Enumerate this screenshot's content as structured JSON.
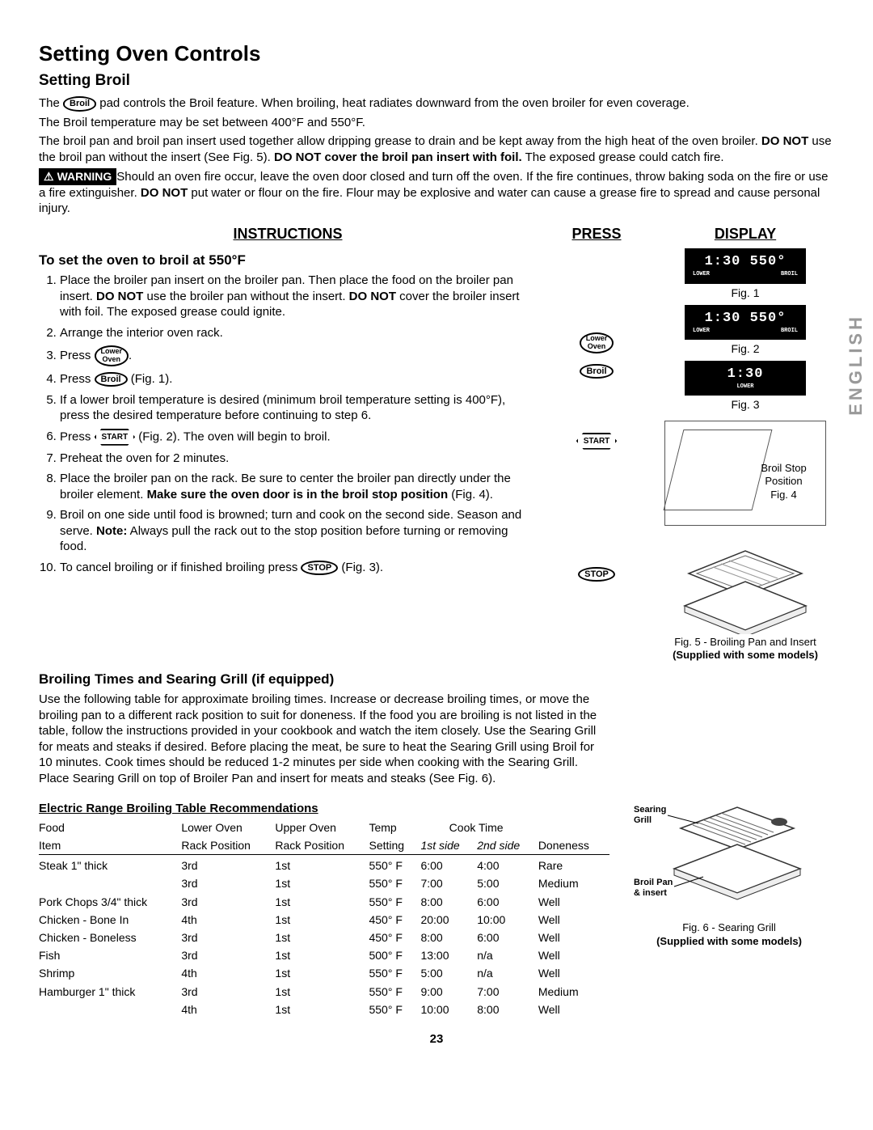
{
  "page_title": "Setting Oven Controls",
  "section_title": "Setting Broil",
  "intro": {
    "p1_pre": "The ",
    "p1_pad": "Broil",
    "p1_post": " pad controls the Broil feature. When broiling, heat radiates downward from the oven broiler for even coverage.",
    "p2": "The Broil temperature may be set between 400°F and 550°F.",
    "p3_a": "The broil pan and broil pan insert used together allow dripping grease to drain and be kept away from the high heat of the oven broiler. ",
    "p3_b": "DO NOT",
    "p3_c": " use the broil pan without the insert (See Fig. 5). ",
    "p3_d": "DO NOT cover the broil pan insert with foil.",
    "p3_e": " The exposed grease could catch fire."
  },
  "warning": {
    "label": "WARNING",
    "text_a": "Should an oven fire occur, leave the oven door closed and turn off the oven. If the fire continues, throw baking soda on the fire or use a fire extinguisher. ",
    "text_b": "DO NOT",
    "text_c": " put water or flour on the fire. Flour may be explosive and water can cause a grease fire to spread and cause personal injury."
  },
  "cols": {
    "instructions_head": "INSTRUCTIONS",
    "press_head": "PRESS",
    "display_head": "DISPLAY"
  },
  "instr_title": "To set the oven to broil at 550°F",
  "steps": {
    "s1_a": "Place the broiler pan insert on the broiler pan. Then place the food on the broiler pan insert. ",
    "s1_b": "DO NOT",
    "s1_c": " use the broiler pan without the insert. ",
    "s1_d": "DO NOT",
    "s1_e": " cover the broiler insert with foil. The exposed grease could ignite.",
    "s2": "Arrange the interior oven rack.",
    "s3_a": "Press ",
    "s3_pad": "Lower\nOven",
    "s3_b": ".",
    "s4_a": "Press ",
    "s4_pad": "Broil",
    "s4_b": " (Fig. 1).",
    "s5": "If a lower broil temperature is desired (minimum broil temperature setting is 400°F), press the desired temperature before continuing to step 6.",
    "s6_a": "Press ",
    "s6_pad": "START",
    "s6_b": " (Fig. 2). The oven will begin to broil.",
    "s7": "Preheat the oven for 2 minutes.",
    "s8_a": "Place the broiler pan on the rack. Be sure to center the broiler pan directly under the broiler element. ",
    "s8_b": "Make sure the oven door is in the broil stop position",
    "s8_c": " (Fig. 4).",
    "s9_a": "Broil on one side until food is browned; turn and cook on the second side. Season and serve. ",
    "s9_b": "Note:",
    "s9_c": " Always pull the rack out to the stop position before turning or removing food.",
    "s10_a": "To cancel broiling or if finished broiling press ",
    "s10_pad": "STOP",
    "s10_b": " (Fig. 3)."
  },
  "press_pads": {
    "lower_oven": "Lower\nOven",
    "broil": "Broil",
    "start": "START",
    "stop": "STOP"
  },
  "displays": {
    "d1_main": "1:30 550°",
    "d1_sub_l": "LOWER",
    "d1_sub_r": "BROIL",
    "fig1": "Fig. 1",
    "d2_main": "1:30 550°",
    "d2_sub_l": "LOWER",
    "d2_sub_r": "BROIL",
    "fig2": "Fig. 2",
    "d3_main": "1:30",
    "d3_sub": "LOWER",
    "fig3": "Fig. 3"
  },
  "english_tab": "ENGLISH",
  "fig4_label": "Broil Stop Position",
  "fig4_cap": "Fig. 4",
  "broil_times": {
    "heading": "Broiling Times and Searing Grill (if equipped)",
    "para": "Use the following table for approximate broiling times. Increase or decrease broiling times, or move the broiling pan to a different rack position to suit for doneness. If the food you are broiling is not listed in the table, follow the instructions provided in your cookbook and watch the item closely. Use the Searing Grill for meats and steaks if desired. Before placing the meat, be sure to heat the Searing Grill using Broil for 10 minutes. Cook times should be reduced 1-2 minutes per side when cooking with the Searing Grill. Place Searing Grill on top of Broiler Pan and insert for meats and steaks (See Fig. 6)."
  },
  "fig5_cap": "Fig. 5 - Broiling Pan and Insert",
  "fig5_sub": "(Supplied with some models)",
  "table": {
    "title": "Electric Range Broiling Table Recommendations",
    "head1": {
      "food": "Food",
      "lower": "Lower Oven",
      "upper": "Upper Oven",
      "temp": "Temp",
      "cook": "Cook Time",
      "done": ""
    },
    "head2": {
      "food": "Item",
      "lower": "Rack Position",
      "upper": "Rack Position",
      "temp": "Setting",
      "side1": "1st side",
      "side2": "2nd side",
      "done": "Doneness"
    },
    "rows": [
      {
        "food": "Steak 1\" thick",
        "lower": "3rd",
        "upper": "1st",
        "temp": "550° F",
        "s1": "6:00",
        "s2": "4:00",
        "done": "Rare"
      },
      {
        "food": "",
        "lower": "3rd",
        "upper": "1st",
        "temp": "550° F",
        "s1": "7:00",
        "s2": "5:00",
        "done": "Medium"
      },
      {
        "food": "Pork Chops 3/4\" thick",
        "lower": "3rd",
        "upper": "1st",
        "temp": "550° F",
        "s1": "8:00",
        "s2": "6:00",
        "done": "Well"
      },
      {
        "food": "Chicken - Bone In",
        "lower": "4th",
        "upper": "1st",
        "temp": "450° F",
        "s1": "20:00",
        "s2": "10:00",
        "done": "Well"
      },
      {
        "food": "Chicken - Boneless",
        "lower": "3rd",
        "upper": "1st",
        "temp": "450° F",
        "s1": "8:00",
        "s2": "6:00",
        "done": "Well"
      },
      {
        "food": "Fish",
        "lower": "3rd",
        "upper": "1st",
        "temp": "500° F",
        "s1": "13:00",
        "s2": "n/a",
        "done": "Well"
      },
      {
        "food": "Shrimp",
        "lower": "4th",
        "upper": "1st",
        "temp": "550° F",
        "s1": "5:00",
        "s2": "n/a",
        "done": "Well"
      },
      {
        "food": "Hamburger 1\" thick",
        "lower": "3rd",
        "upper": "1st",
        "temp": "550° F",
        "s1": "9:00",
        "s2": "7:00",
        "done": "Medium"
      },
      {
        "food": "",
        "lower": "4th",
        "upper": "1st",
        "temp": "550° F",
        "s1": "10:00",
        "s2": "8:00",
        "done": "Well"
      }
    ]
  },
  "fig6": {
    "searing": "Searing",
    "grill": "Grill",
    "pan": "Broil Pan",
    "insert": "& insert",
    "cap": "Fig. 6 - Searing Grill",
    "sub": "(Supplied with some models)"
  },
  "page_number": "23"
}
